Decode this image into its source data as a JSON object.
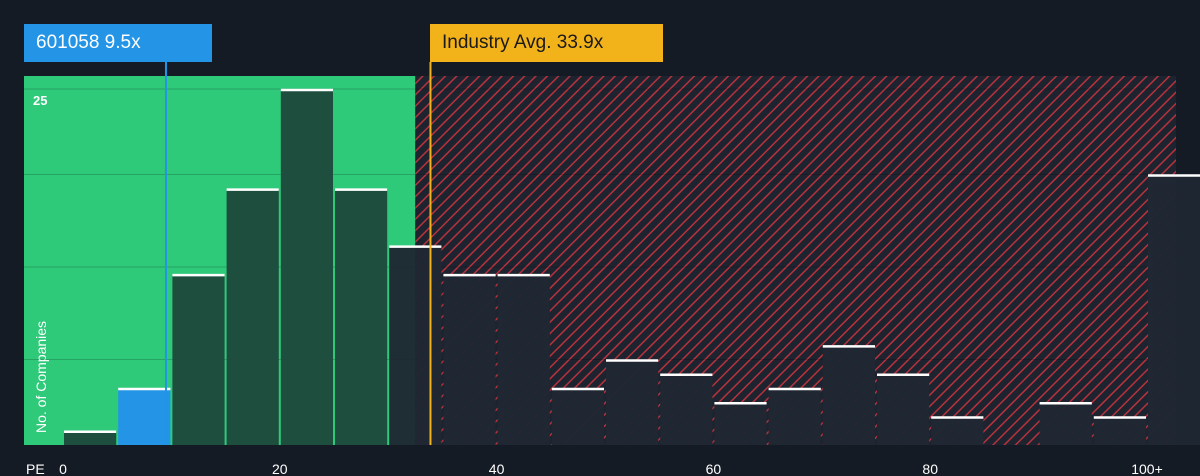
{
  "callouts": {
    "company": "601058 9.5x",
    "industry": "Industry Avg. 33.9x"
  },
  "colors": {
    "background": "#151b25",
    "fair_zone": "#2fc97a",
    "overvalued_zone": "#b8323c",
    "company_bar": "#2394e6",
    "industry_line": "#f2b21a",
    "bar": "#1e4a3c"
  },
  "chart_data": {
    "type": "bar",
    "title": "",
    "xlabel": "PE",
    "ylabel": "No. of Companies",
    "xlim": [
      0,
      100
    ],
    "ylim": [
      0,
      25
    ],
    "bin_width": 5,
    "x_ticks": [
      "0",
      "20",
      "40",
      "60",
      "80",
      "100+"
    ],
    "y_ticks": [
      "25"
    ],
    "bins": [
      0,
      5,
      10,
      15,
      20,
      25,
      30,
      35,
      40,
      45,
      50,
      55,
      60,
      65,
      70,
      75,
      80,
      85,
      90,
      95,
      100
    ],
    "values": [
      1,
      4,
      12,
      18,
      25,
      18,
      14,
      12,
      12,
      4,
      6,
      5,
      3,
      4,
      7,
      5,
      2,
      0,
      3,
      2,
      19
    ],
    "company_value": 9.5,
    "company_bin": 5,
    "industry_avg": 33.9,
    "fair_zone_upper": 32.5,
    "grid": true
  }
}
